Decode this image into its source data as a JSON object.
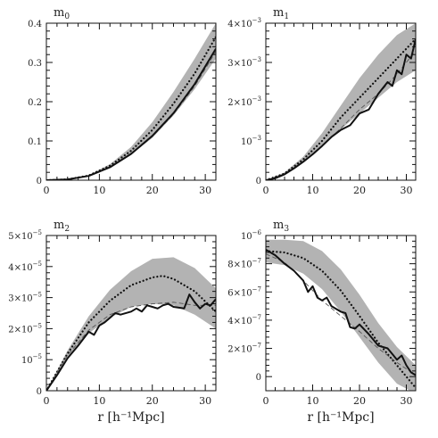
{
  "chart_data": [
    {
      "type": "line",
      "title": "m",
      "title_sub": "0",
      "xlabel": "",
      "xlim": [
        0,
        32
      ],
      "ylim": [
        0,
        0.4
      ],
      "x_ticks": [
        0,
        10,
        20,
        30
      ],
      "x_tick_labels": [
        "0",
        "10",
        "20",
        "30"
      ],
      "y_ticks": [
        0,
        0.1,
        0.2,
        0.3,
        0.4
      ],
      "y_tick_labels": [
        [
          "0",
          ""
        ],
        [
          "0.1",
          ""
        ],
        [
          "0.2",
          ""
        ],
        [
          "0.3",
          ""
        ],
        [
          "0.4",
          ""
        ]
      ],
      "band": {
        "x": [
          0,
          4,
          8,
          12,
          16,
          20,
          24,
          28,
          32
        ],
        "lower": [
          0,
          0.002,
          0.011,
          0.033,
          0.065,
          0.108,
          0.165,
          0.232,
          0.31
        ],
        "upper": [
          0,
          0.002,
          0.013,
          0.041,
          0.085,
          0.148,
          0.225,
          0.31,
          0.4
        ]
      },
      "series": [
        {
          "style": "dotted",
          "x": [
            0,
            4,
            8,
            12,
            16,
            20,
            24,
            28,
            32
          ],
          "values": [
            0,
            0.002,
            0.012,
            0.037,
            0.075,
            0.128,
            0.195,
            0.272,
            0.365
          ]
        },
        {
          "style": "dashed",
          "x": [
            0,
            4,
            8,
            12,
            16,
            20,
            24,
            28,
            32
          ],
          "values": [
            0,
            0.002,
            0.011,
            0.033,
            0.066,
            0.111,
            0.168,
            0.24,
            0.328
          ]
        },
        {
          "style": "solid",
          "x": [
            0,
            4,
            8,
            12,
            16,
            20,
            24,
            28,
            32
          ],
          "values": [
            0,
            0.002,
            0.011,
            0.033,
            0.067,
            0.113,
            0.171,
            0.245,
            0.335
          ]
        }
      ]
    },
    {
      "type": "line",
      "title": "m",
      "title_sub": "1",
      "xlabel": "",
      "xlim": [
        0,
        32
      ],
      "ylim": [
        0,
        0.004
      ],
      "x_ticks": [
        0,
        10,
        20,
        30
      ],
      "x_tick_labels": [
        "0",
        "10",
        "20",
        "30"
      ],
      "y_ticks": [
        0,
        0.001,
        0.002,
        0.003,
        0.004
      ],
      "y_tick_labels": [
        [
          "0",
          ""
        ],
        [
          "10",
          "−3"
        ],
        [
          "2×10",
          "−3"
        ],
        [
          "3×10",
          "−3"
        ],
        [
          "4×10",
          "−3"
        ]
      ],
      "band": {
        "x": [
          0,
          4,
          8,
          12,
          16,
          20,
          24,
          28,
          32
        ],
        "lower": [
          0,
          0.00015,
          0.00048,
          0.00088,
          0.0013,
          0.0017,
          0.0021,
          0.0025,
          0.0028
        ],
        "upper": [
          0,
          0.0002,
          0.0006,
          0.0012,
          0.0019,
          0.0026,
          0.0032,
          0.0037,
          0.004
        ]
      },
      "series": [
        {
          "style": "dotted",
          "x": [
            0,
            4,
            8,
            12,
            16,
            20,
            24,
            28,
            32
          ],
          "values": [
            0,
            0.00017,
            0.00053,
            0.001,
            0.0016,
            0.0021,
            0.0026,
            0.0031,
            0.0036
          ]
        },
        {
          "style": "dashed",
          "x": [
            0,
            4,
            8,
            12,
            16,
            20,
            24,
            28,
            32
          ],
          "values": [
            0,
            0.00015,
            0.00047,
            0.00088,
            0.00132,
            0.0018,
            0.0022,
            0.0027,
            0.0033
          ]
        },
        {
          "style": "solid",
          "x": [
            0,
            2,
            4,
            6,
            8,
            10,
            12,
            14,
            16,
            18,
            20,
            22,
            24,
            26,
            27,
            28,
            29,
            30,
            31,
            32
          ],
          "values": [
            0,
            5e-05,
            0.00015,
            0.0003,
            0.00047,
            0.00066,
            0.00087,
            0.0011,
            0.00128,
            0.0014,
            0.0017,
            0.0018,
            0.0022,
            0.0025,
            0.0024,
            0.0028,
            0.0027,
            0.0032,
            0.0031,
            0.0036
          ]
        }
      ]
    },
    {
      "type": "line",
      "title": "m",
      "title_sub": "2",
      "xlabel": "r [h⁻¹Mpc]",
      "xlim": [
        0,
        32
      ],
      "ylim": [
        0,
        5e-05
      ],
      "x_ticks": [
        0,
        10,
        20,
        30
      ],
      "x_tick_labels": [
        "0",
        "10",
        "20",
        "30"
      ],
      "y_ticks": [
        0,
        1e-05,
        2e-05,
        3e-05,
        4e-05,
        5e-05
      ],
      "y_tick_labels": [
        [
          "0",
          ""
        ],
        [
          "10",
          "−5"
        ],
        [
          "2×10",
          "−5"
        ],
        [
          "3×10",
          "−5"
        ],
        [
          "4×10",
          "−5"
        ],
        [
          "5×10",
          "−5"
        ]
      ],
      "band": {
        "x": [
          0,
          4,
          8,
          12,
          16,
          20,
          24,
          28,
          32
        ],
        "lower": [
          0,
          1.1e-05,
          1.85e-05,
          2.35e-05,
          2.7e-05,
          2.8e-05,
          2.75e-05,
          2.45e-05,
          2e-05
        ],
        "upper": [
          0,
          1.3e-05,
          2.4e-05,
          3.25e-05,
          3.85e-05,
          4.25e-05,
          4.3e-05,
          3.95e-05,
          3.3e-05
        ]
      },
      "series": [
        {
          "style": "dotted",
          "x": [
            0,
            4,
            8,
            12,
            16,
            20,
            22,
            24,
            28,
            32
          ],
          "values": [
            0,
            1.2e-05,
            2.2e-05,
            2.9e-05,
            3.4e-05,
            3.65e-05,
            3.7e-05,
            3.6e-05,
            3.2e-05,
            2.55e-05
          ]
        },
        {
          "style": "dashed",
          "x": [
            0,
            4,
            8,
            12,
            16,
            20,
            24,
            28,
            32
          ],
          "values": [
            0,
            1.15e-05,
            1.95e-05,
            2.45e-05,
            2.7e-05,
            2.8e-05,
            2.85e-05,
            2.75e-05,
            2.75e-05
          ]
        },
        {
          "style": "solid",
          "x": [
            0,
            2,
            4,
            6,
            8,
            9,
            10,
            11,
            12,
            13,
            14,
            16,
            17,
            18,
            19,
            20,
            21,
            22,
            23,
            24,
            26,
            27,
            28,
            29,
            30,
            31,
            32
          ],
          "values": [
            0,
            5e-06,
            1.05e-05,
            1.45e-05,
            1.9e-05,
            1.8e-05,
            2.1e-05,
            2.2e-05,
            2.35e-05,
            2.5e-05,
            2.45e-05,
            2.55e-05,
            2.65e-05,
            2.55e-05,
            2.75e-05,
            2.7e-05,
            2.65e-05,
            2.75e-05,
            2.8e-05,
            2.7e-05,
            2.65e-05,
            3.1e-05,
            2.85e-05,
            2.65e-05,
            2.8e-05,
            2.75e-05,
            2.95e-05
          ]
        }
      ]
    },
    {
      "type": "line",
      "title": "m",
      "title_sub": "3",
      "xlabel": "r [h⁻¹Mpc]",
      "xlim": [
        0,
        32
      ],
      "ylim": [
        -1e-07,
        1e-06
      ],
      "x_ticks": [
        0,
        10,
        20,
        30
      ],
      "x_tick_labels": [
        "0",
        "10",
        "20",
        "30"
      ],
      "y_ticks": [
        0,
        2e-07,
        4e-07,
        6e-07,
        8e-07,
        1e-06
      ],
      "y_tick_labels": [
        [
          "0",
          ""
        ],
        [
          "2×10",
          "−7"
        ],
        [
          "4×10",
          "−7"
        ],
        [
          "6×10",
          "−7"
        ],
        [
          "8×10",
          "−7"
        ],
        [
          "10",
          "−6"
        ]
      ],
      "band": {
        "x": [
          0,
          4,
          8,
          12,
          16,
          20,
          24,
          28,
          32
        ],
        "lower": [
          8.1e-07,
          7.9e-07,
          7.3e-07,
          6.2e-07,
          4.6e-07,
          2.8e-07,
          1e-07,
          -5e-08,
          -1.2e-07
        ],
        "upper": [
          9.7e-07,
          9.7e-07,
          9.6e-07,
          8.9e-07,
          7.6e-07,
          5.8e-07,
          3.8e-07,
          2.1e-07,
          8e-08
        ]
      },
      "series": [
        {
          "style": "dotted",
          "x": [
            0,
            4,
            8,
            12,
            16,
            20,
            24,
            28,
            32
          ],
          "values": [
            8.9e-07,
            8.8e-07,
            8.4e-07,
            7.5e-07,
            6.1e-07,
            4.3e-07,
            2.4e-07,
            8e-08,
            -8e-08
          ]
        },
        {
          "style": "dashed",
          "x": [
            0,
            4,
            8,
            12,
            16,
            20,
            24,
            28,
            32
          ],
          "values": [
            8.7e-07,
            8.1e-07,
            6.8e-07,
            5.4e-07,
            4.3e-07,
            3.2e-07,
            2e-07,
            1e-07,
            1e-08
          ]
        },
        {
          "style": "solid",
          "x": [
            0,
            2,
            4,
            6,
            8,
            9,
            10,
            11,
            12,
            13,
            14,
            16,
            17,
            18,
            19,
            20,
            22,
            24,
            26,
            27,
            28,
            29,
            30,
            31,
            32
          ],
          "values": [
            9e-07,
            8.6e-07,
            8e-07,
            7.5e-07,
            6.8e-07,
            6e-07,
            6.4e-07,
            5.6e-07,
            5.4e-07,
            5.6e-07,
            5e-07,
            4.6e-07,
            4.5e-07,
            3.5e-07,
            3.4e-07,
            3.7e-07,
            3e-07,
            2.2e-07,
            2e-07,
            1.6e-07,
            1.2e-07,
            1.5e-07,
            8e-08,
            3e-08,
            1e-08
          ]
        }
      ]
    }
  ]
}
